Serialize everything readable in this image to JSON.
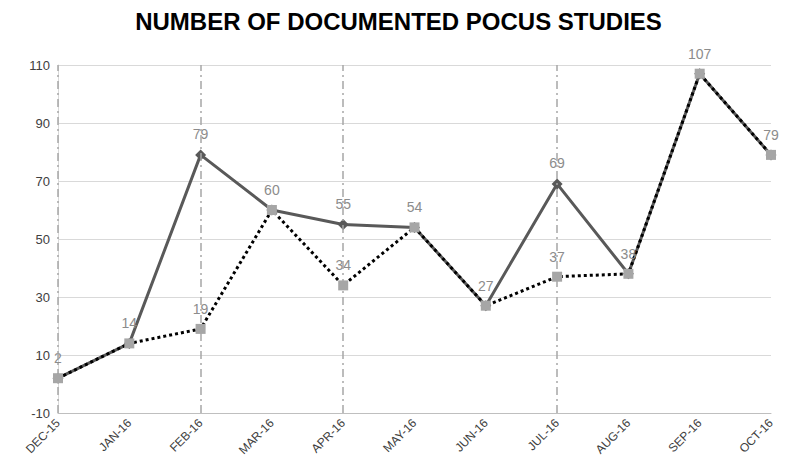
{
  "chart_data": {
    "type": "line",
    "title": "NUMBER OF DOCUMENTED POCUS STUDIES",
    "categories": [
      "DEC-15",
      "JAN-16",
      "FEB-16",
      "MAR-16",
      "APR-16",
      "MAY-16",
      "JUN-16",
      "JUL-16",
      "AUG-16",
      "SEP-16",
      "OCT-16"
    ],
    "series": [
      {
        "color": "#595959",
        "marker": "diamond",
        "line_style": "solid",
        "values": [
          2,
          14,
          79,
          60,
          55,
          54,
          27,
          69,
          38,
          107,
          79
        ]
      },
      {
        "color": "#a6a6a6",
        "marker": "square",
        "line_style": "dotted",
        "values": [
          2,
          14,
          19,
          60,
          34,
          54,
          27,
          37,
          38,
          107,
          79
        ]
      }
    ],
    "ylim": [
      -10,
      110
    ],
    "yticks": [
      -10,
      10,
      30,
      50,
      70,
      90,
      110
    ],
    "grid": true,
    "data_labels": true,
    "vertical_lines": [
      "DEC-15",
      "FEB-16",
      "APR-16",
      "JUL-16"
    ]
  }
}
